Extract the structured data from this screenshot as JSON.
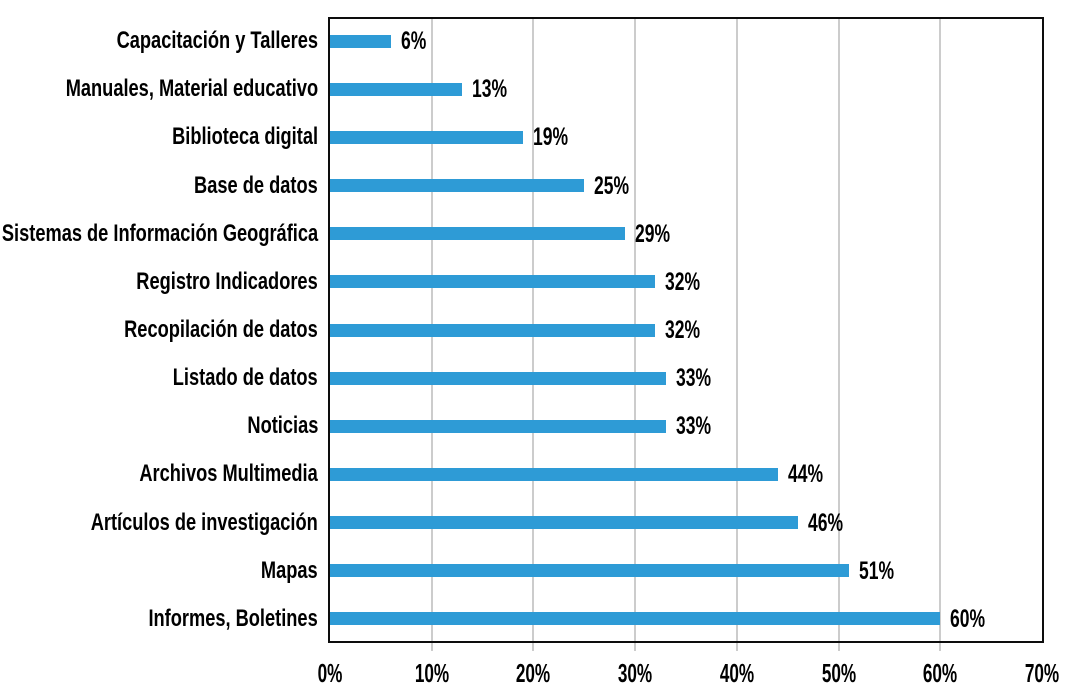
{
  "chart_data": {
    "type": "bar",
    "orientation": "horizontal",
    "title": "",
    "xlabel": "",
    "ylabel": "",
    "categories": [
      "Capacitación y Talleres",
      "Manuales, Material educativo",
      "Biblioteca digital",
      "Base de datos",
      "Sistemas de Información Geográfica",
      "Registro Indicadores",
      "Recopilación de datos",
      "Listado de datos",
      "Noticias",
      "Archivos Multimedia",
      "Artículos de investigación",
      "Mapas",
      "Informes, Boletines"
    ],
    "values": [
      6,
      13,
      19,
      25,
      29,
      32,
      32,
      33,
      33,
      44,
      46,
      51,
      60
    ],
    "value_labels": [
      "6%",
      "13%",
      "19%",
      "25%",
      "29%",
      "32%",
      "32%",
      "33%",
      "33%",
      "44%",
      "46%",
      "51%",
      "60%"
    ],
    "x_ticks": [
      "0%",
      "10%",
      "20%",
      "30%",
      "40%",
      "50%",
      "60%",
      "70%"
    ],
    "xlim": [
      0,
      70
    ],
    "grid": "vertical",
    "legend": "none",
    "bar_color": "#2E9BD6",
    "gridline_color": "#CCCCCC",
    "axis_border_color": "#0D0D0D",
    "text_color": "#000000"
  }
}
